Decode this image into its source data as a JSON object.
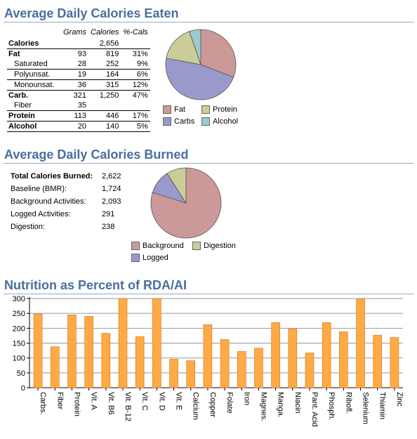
{
  "sections": {
    "eaten_title": "Average Daily Calories Eaten",
    "burned_title": "Average Daily Calories Burned",
    "rda_title": "Nutrition as Percent of RDA/AI"
  },
  "eaten": {
    "headers": [
      "",
      "Grams",
      "Calories",
      "%-Cals"
    ],
    "rows": [
      {
        "name": "Calories",
        "grams": "",
        "calories": "2,656",
        "pct": "",
        "bold": true,
        "sub": false,
        "line": true
      },
      {
        "name": "Fat",
        "grams": "93",
        "calories": "819",
        "pct": "31%",
        "bold": true,
        "sub": false,
        "line": false
      },
      {
        "name": "Saturated",
        "grams": "28",
        "calories": "252",
        "pct": "9%",
        "bold": false,
        "sub": true,
        "line": true
      },
      {
        "name": "Polyunsat.",
        "grams": "19",
        "calories": "164",
        "pct": "6%",
        "bold": false,
        "sub": true,
        "line": true
      },
      {
        "name": "Monounsat.",
        "grams": "36",
        "calories": "315",
        "pct": "12%",
        "bold": false,
        "sub": true,
        "line": true
      },
      {
        "name": "Carb.",
        "grams": "321",
        "calories": "1,250",
        "pct": "47%",
        "bold": true,
        "sub": false,
        "line": false
      },
      {
        "name": "Fiber",
        "grams": "35",
        "calories": "",
        "pct": "",
        "bold": false,
        "sub": true,
        "line": true
      },
      {
        "name": "Protein",
        "grams": "113",
        "calories": "446",
        "pct": "17%",
        "bold": true,
        "sub": false,
        "line": true
      },
      {
        "name": "Alcohol",
        "grams": "20",
        "calories": "140",
        "pct": "5%",
        "bold": true,
        "sub": false,
        "line": true
      }
    ]
  },
  "burned": {
    "rows": [
      {
        "label": "Total Calories Burned:",
        "value": "2,622",
        "bold": true
      },
      {
        "label": "Baseline (BMR):",
        "value": "1,724",
        "bold": false
      },
      {
        "label": "Background Activities:",
        "value": "2,093",
        "bold": false
      },
      {
        "label": "Logged Activities:",
        "value": "291",
        "bold": false
      },
      {
        "label": "Digestion:",
        "value": "238",
        "bold": false
      }
    ]
  },
  "chart_data": [
    {
      "type": "pie",
      "title": "",
      "slices": [
        {
          "label": "Fat",
          "value": 819,
          "color": "#cc9999"
        },
        {
          "label": "Carbs",
          "value": 1250,
          "color": "#9999cc"
        },
        {
          "label": "Protein",
          "value": 446,
          "color": "#cccc99"
        },
        {
          "label": "Alcohol",
          "value": 140,
          "color": "#99cccc"
        }
      ],
      "legend_placement": "bottom"
    },
    {
      "type": "pie",
      "title": "",
      "slices": [
        {
          "label": "Background",
          "value": 2093,
          "color": "#cc9999"
        },
        {
          "label": "Logged",
          "value": 291,
          "color": "#9999cc"
        },
        {
          "label": "Digestion",
          "value": 238,
          "color": "#cccc99"
        }
      ],
      "legend_placement": "bottom"
    },
    {
      "type": "bar",
      "title": "",
      "categories": [
        "Carbs.",
        "Fiber",
        "Protein",
        "Vit. A",
        "Vit. B6",
        "Vit. B-12",
        "Vit. C",
        "Vit. D",
        "Vit. E",
        "Calcium",
        "Copper",
        "Folate",
        "Iron",
        "Magnes.",
        "Manga.",
        "Niacin",
        "Pant. Acid",
        "Phosph.",
        "Ribofl.",
        "Selenium",
        "Thiamin",
        "Zinc"
      ],
      "values": [
        248,
        138,
        245,
        240,
        183,
        305,
        172,
        305,
        96,
        91,
        212,
        162,
        122,
        133,
        219,
        198,
        117,
        219,
        188,
        305,
        177,
        169
      ],
      "ylim": [
        0,
        300
      ],
      "yticks": [
        0,
        50,
        100,
        150,
        200,
        250,
        300
      ],
      "grid": true,
      "bar_color": "#ffaa44",
      "bar_border": "#cc7a22"
    }
  ]
}
